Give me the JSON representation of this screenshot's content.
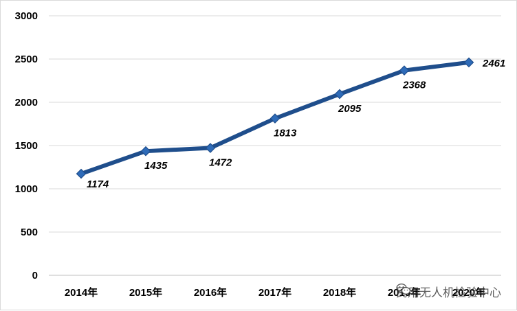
{
  "colors": {
    "series": "#1f4e8c",
    "marker": "#2e6bb8",
    "grid": "#d9d9d9"
  },
  "chart_data": {
    "type": "line",
    "categories": [
      "2014年",
      "2015年",
      "2016年",
      "2017年",
      "2018年",
      "2019年",
      "2020年"
    ],
    "series": [
      {
        "values": [
          1174,
          1435,
          1472,
          1813,
          2095,
          2368,
          2461
        ]
      }
    ],
    "yticks": [
      "0",
      "500",
      "1000",
      "1500",
      "2000",
      "2500",
      "3000"
    ],
    "ylim": [
      0,
      3000
    ],
    "grid": true,
    "legend": "none",
    "data_labels": [
      "1174",
      "1435",
      "1472",
      "1813",
      "2095",
      "2368",
      "2461"
    ]
  },
  "watermark": {
    "text": "民用无人机检验中心",
    "icon": "wechat-icon"
  }
}
